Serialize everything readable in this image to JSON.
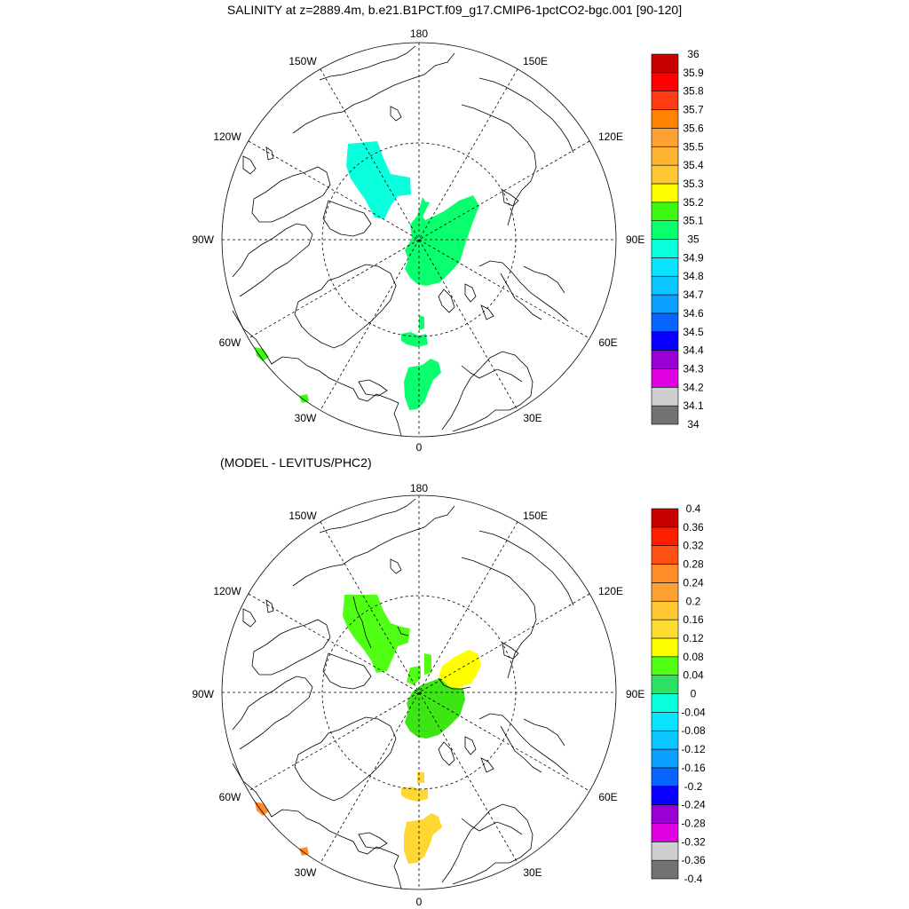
{
  "title": "SALINITY at z=2889.4m, b.e21.B1PCT.f09_g17.CMIP6-1pctCO2-bgc.001 [90-120]",
  "subtitle": "(MODEL - LEVITUS/PHC2)",
  "lon_labels": {
    "deg180": "180",
    "w150": "150W",
    "e150": "150E",
    "w120": "120W",
    "e120": "120E",
    "w90": "90W",
    "e90": "90E",
    "w60": "60W",
    "e60": "60E",
    "w30": "30W",
    "e30": "30E",
    "deg0": "0"
  },
  "colors": {
    "top": [
      "#727272",
      "#cfcfcf",
      "#e100e1",
      "#9a00d6",
      "#0a00ff",
      "#0a64ff",
      "#0aa0ff",
      "#0ac8ff",
      "#0ae4ff",
      "#0affdc",
      "#0aff6e",
      "#3cfa14",
      "#ffff00",
      "#ffc832",
      "#ffb432",
      "#ffa032",
      "#ff8200",
      "#ff3c14",
      "#ff0000",
      "#c80000"
    ],
    "bottom": [
      "#727272",
      "#cfcfcf",
      "#e100e1",
      "#9a00d6",
      "#0a00ff",
      "#0a64ff",
      "#0aa0ff",
      "#0ac8ff",
      "#0ae4ff",
      "#0affdc",
      "#2de066",
      "#50ff14",
      "#ffff00",
      "#ffdc32",
      "#ffc832",
      "#ffa032",
      "#ff8c28",
      "#ff5014",
      "#ff1e00",
      "#c80000"
    ]
  },
  "colorbar_top": [
    "34",
    "34.1",
    "34.2",
    "34.3",
    "34.4",
    "34.5",
    "34.6",
    "34.7",
    "34.8",
    "34.9",
    "35",
    "35.1",
    "35.2",
    "35.3",
    "35.4",
    "35.5",
    "35.6",
    "35.7",
    "35.8",
    "35.9",
    "36"
  ],
  "colorbar_bottom": [
    "-0.4",
    "-0.36",
    "-0.32",
    "-0.28",
    "-0.24",
    "-0.2",
    "-0.16",
    "-0.12",
    "-0.08",
    "-0.04",
    "0",
    "0.04",
    "0.08",
    "0.12",
    "0.16",
    "0.2",
    "0.24",
    "0.28",
    "0.32",
    "0.36",
    "0.4"
  ],
  "fill_colors": {
    "top_cyan": "#0affdc",
    "top_green": "#0aff6e",
    "top_lime": "#3cfa14",
    "bot_green": "#3ce614",
    "bot_lime": "#50ff14",
    "bot_yellow": "#ffff00",
    "bot_gold": "#ffd732",
    "bot_orange": "#ff8c28"
  }
}
